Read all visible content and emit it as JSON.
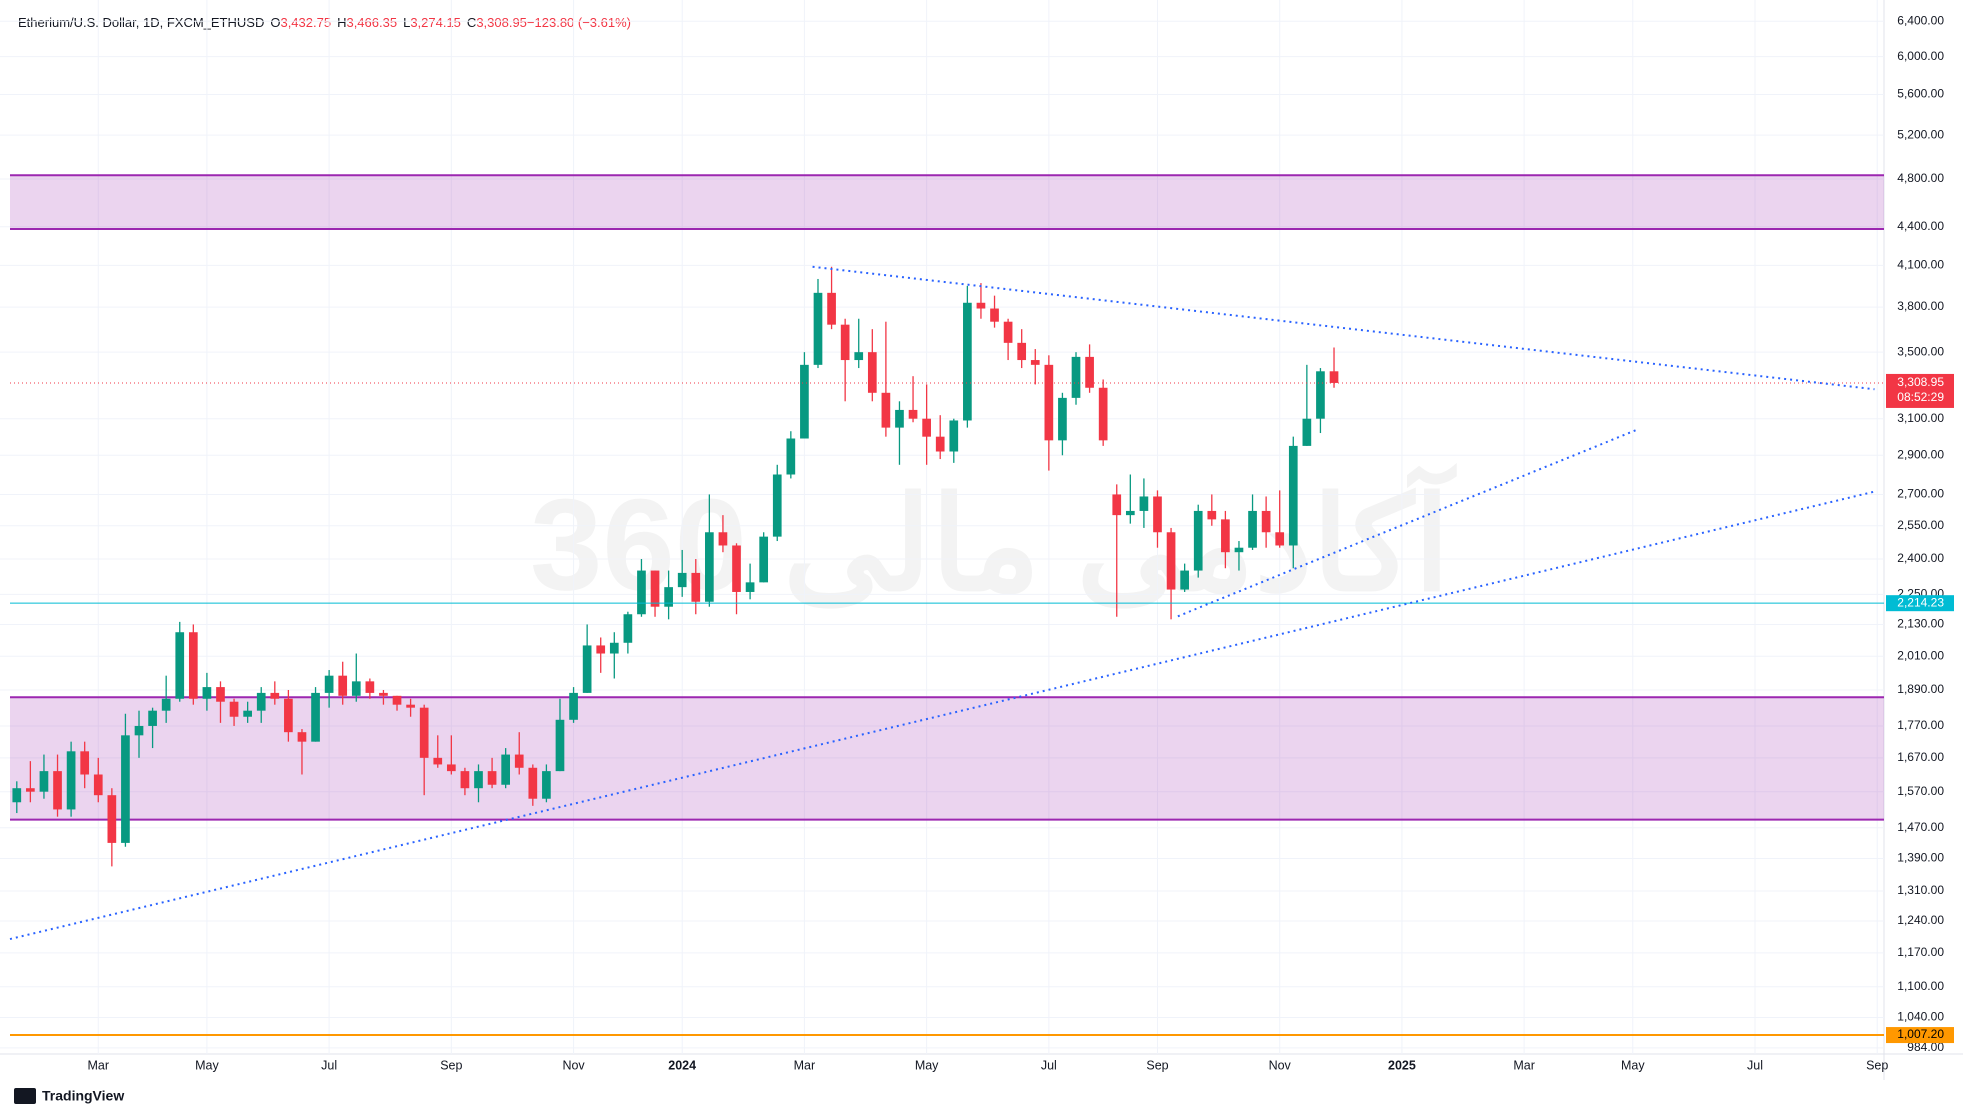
{
  "chart_data": {
    "type": "candlestick",
    "title": "Etherium/U.S. Dollar, 1D, FXCM_ETHUSD",
    "legend_values": [
      {
        "key": "O",
        "text": "3,432.75"
      },
      {
        "key": "H",
        "text": "3,466.35"
      },
      {
        "key": "L",
        "text": "3,274.15"
      },
      {
        "key": "C",
        "text": "3,308.95"
      },
      {
        "key": "",
        "text": "−123.80 (−3.61%)"
      }
    ],
    "watermark": "360 آکادمی مالی",
    "branding": "TradingView",
    "log_scale": true,
    "grid": true,
    "up_color": "#089981",
    "down_color": "#f23645",
    "ylim": [
      973,
      6533
    ],
    "yticks": [
      {
        "value": 6400,
        "label": "6,400.00"
      },
      {
        "value": 6000,
        "label": "6,000.00"
      },
      {
        "value": 5600,
        "label": "5,600.00"
      },
      {
        "value": 5200,
        "label": "5,200.00"
      },
      {
        "value": 4800,
        "label": "4,800.00"
      },
      {
        "value": 4400,
        "label": "4,400.00"
      },
      {
        "value": 4100,
        "label": "4,100.00"
      },
      {
        "value": 3800,
        "label": "3,800.00"
      },
      {
        "value": 3500,
        "label": "3,500.00"
      },
      {
        "value": 3100,
        "label": "3,100.00"
      },
      {
        "value": 2900,
        "label": "2,900.00"
      },
      {
        "value": 2700,
        "label": "2,700.00"
      },
      {
        "value": 2550,
        "label": "2,550.00"
      },
      {
        "value": 2400,
        "label": "2,400.00"
      },
      {
        "value": 2250,
        "label": "2,250.00"
      },
      {
        "value": 2130,
        "label": "2,130.00"
      },
      {
        "value": 2010,
        "label": "2,010.00"
      },
      {
        "value": 1890,
        "label": "1,890.00"
      },
      {
        "value": 1770,
        "label": "1,770.00"
      },
      {
        "value": 1670,
        "label": "1,670.00"
      },
      {
        "value": 1570,
        "label": "1,570.00"
      },
      {
        "value": 1470,
        "label": "1,470.00"
      },
      {
        "value": 1390,
        "label": "1,390.00"
      },
      {
        "value": 1310,
        "label": "1,310.00"
      },
      {
        "value": 1240,
        "label": "1,240.00"
      },
      {
        "value": 1170,
        "label": "1,170.00"
      },
      {
        "value": 1100,
        "label": "1,100.00"
      },
      {
        "value": 1040,
        "label": "1,040.00"
      },
      {
        "value": 984,
        "label": "984.00"
      }
    ],
    "categories": [
      null,
      null,
      null,
      null,
      null,
      null,
      "Mar",
      null,
      null,
      null,
      null,
      null,
      null,
      null,
      "May",
      null,
      null,
      null,
      null,
      null,
      null,
      null,
      null,
      "Jul",
      null,
      null,
      null,
      null,
      null,
      null,
      null,
      null,
      "Sep",
      null,
      null,
      null,
      null,
      null,
      null,
      null,
      null,
      "Nov",
      null,
      null,
      null,
      null,
      null,
      null,
      null,
      "2024",
      null,
      null,
      null,
      null,
      null,
      null,
      null,
      null,
      "Mar",
      null,
      null,
      null,
      null,
      null,
      null,
      null,
      null,
      "May",
      null,
      null,
      null,
      null,
      null,
      null,
      null,
      null,
      "Jul",
      null,
      null,
      null,
      null,
      null,
      null,
      null,
      "Sep",
      null,
      null,
      null,
      null,
      null,
      null,
      null,
      null,
      "Nov",
      null,
      null,
      null,
      null,
      null,
      null,
      null,
      null,
      "2025",
      null,
      null,
      null,
      null,
      null,
      null,
      null,
      null,
      "Mar",
      null,
      null,
      null,
      null,
      null,
      null,
      null,
      "May",
      null,
      null,
      null,
      null,
      null,
      null,
      null,
      null,
      "Jul",
      null,
      null,
      null,
      null,
      null,
      null,
      null,
      null,
      "Sep"
    ],
    "open": [
      1540,
      1580,
      1570,
      1630,
      1520,
      1690,
      1620,
      1560,
      1430,
      1740,
      1770,
      1820,
      1860,
      2100,
      1860,
      1900,
      1850,
      1800,
      1820,
      1880,
      1860,
      1750,
      1720,
      1880,
      1940,
      1870,
      1920,
      1880,
      1870,
      1840,
      1830,
      1670,
      1650,
      1630,
      1580,
      1630,
      1590,
      1680,
      1640,
      1550,
      1630,
      1790,
      1880,
      2050,
      2020,
      2060,
      2170,
      2350,
      2200,
      2280,
      2340,
      2220,
      2520,
      2460,
      2260,
      2300,
      2500,
      2800,
      2990,
      3420,
      3900,
      3680,
      3450,
      3500,
      3250,
      3050,
      3150,
      3100,
      3000,
      2920,
      3090,
      3830,
      3790,
      3700,
      3560,
      3450,
      3420,
      2980,
      3220,
      3470,
      3280,
      2700,
      2600,
      2620,
      2690,
      2520,
      2270,
      2350,
      2620,
      2580,
      2430,
      2450,
      2620,
      2520,
      2460,
      2950,
      3100,
      3380,
      null,
      null,
      null,
      null,
      null,
      null,
      null,
      null,
      null,
      null,
      null,
      null,
      null,
      null,
      null,
      null,
      null,
      null,
      null,
      null,
      null,
      null,
      null,
      null,
      null,
      null,
      null,
      null,
      null,
      null,
      null,
      null,
      null,
      null,
      null,
      null,
      null,
      null,
      null,
      null
    ],
    "high": [
      1600,
      1660,
      1680,
      1680,
      1720,
      1720,
      1670,
      1580,
      1810,
      1820,
      1830,
      1940,
      2140,
      2130,
      1950,
      1920,
      1860,
      1850,
      1900,
      1920,
      1890,
      1760,
      1900,
      1960,
      1990,
      2020,
      1930,
      1890,
      1870,
      1860,
      1840,
      1740,
      1740,
      1640,
      1650,
      1670,
      1700,
      1750,
      1650,
      1650,
      1860,
      1900,
      2130,
      2080,
      2100,
      2180,
      2400,
      2350,
      2350,
      2440,
      2400,
      2700,
      2600,
      2470,
      2380,
      2520,
      2850,
      3030,
      3500,
      4000,
      4090,
      3720,
      3720,
      3650,
      3700,
      3200,
      3350,
      3300,
      3120,
      3100,
      3950,
      3970,
      3880,
      3720,
      3650,
      3520,
      3480,
      3250,
      3500,
      3550,
      3330,
      2750,
      2800,
      2780,
      2720,
      2540,
      2380,
      2650,
      2700,
      2620,
      2480,
      2700,
      2690,
      2720,
      3000,
      3420,
      3400,
      3530,
      null,
      null,
      null,
      null,
      null,
      null,
      null,
      null,
      null,
      null,
      null,
      null,
      null,
      null,
      null,
      null,
      null,
      null,
      null,
      null,
      null,
      null,
      null,
      null,
      null,
      null,
      null,
      null,
      null,
      null,
      null,
      null,
      null,
      null,
      null,
      null,
      null,
      null,
      null,
      null
    ],
    "low": [
      1510,
      1540,
      1550,
      1500,
      1500,
      1580,
      1540,
      1370,
      1420,
      1670,
      1700,
      1780,
      1850,
      1840,
      1820,
      1780,
      1770,
      1780,
      1780,
      1840,
      1720,
      1620,
      1720,
      1830,
      1840,
      1850,
      1860,
      1840,
      1820,
      1800,
      1560,
      1640,
      1620,
      1560,
      1540,
      1580,
      1580,
      1620,
      1530,
      1540,
      1630,
      1780,
      1880,
      1950,
      1930,
      2020,
      2160,
      2160,
      2150,
      2240,
      2170,
      2200,
      2430,
      2170,
      2230,
      2300,
      2480,
      2780,
      2990,
      3400,
      3650,
      3200,
      3400,
      3200,
      3000,
      2850,
      3080,
      2850,
      2880,
      2860,
      3050,
      3720,
      3660,
      3450,
      3400,
      3300,
      2820,
      2900,
      3180,
      3250,
      2950,
      2160,
      2560,
      2540,
      2450,
      2150,
      2260,
      2320,
      2550,
      2360,
      2350,
      2440,
      2450,
      2450,
      2360,
      2950,
      3020,
      3280,
      null,
      null,
      null,
      null,
      null,
      null,
      null,
      null,
      null,
      null,
      null,
      null,
      null,
      null,
      null,
      null,
      null,
      null,
      null,
      null,
      null,
      null,
      null,
      null,
      null,
      null,
      null,
      null,
      null,
      null,
      null,
      null,
      null,
      null,
      null,
      null,
      null,
      null,
      null,
      null
    ],
    "close": [
      1580,
      1570,
      1630,
      1520,
      1690,
      1620,
      1560,
      1430,
      1740,
      1770,
      1820,
      1860,
      2100,
      1860,
      1900,
      1850,
      1800,
      1820,
      1880,
      1860,
      1750,
      1720,
      1880,
      1940,
      1870,
      1920,
      1880,
      1870,
      1840,
      1830,
      1670,
      1650,
      1630,
      1580,
      1630,
      1590,
      1680,
      1640,
      1550,
      1630,
      1790,
      1880,
      2050,
      2020,
      2060,
      2170,
      2350,
      2200,
      2280,
      2340,
      2220,
      2520,
      2460,
      2260,
      2300,
      2500,
      2800,
      2990,
      3420,
      3900,
      3680,
      3450,
      3500,
      3250,
      3050,
      3150,
      3100,
      3000,
      2920,
      3090,
      3830,
      3790,
      3700,
      3560,
      3450,
      3420,
      2980,
      3220,
      3470,
      3280,
      2980,
      2600,
      2620,
      2690,
      2520,
      2270,
      2350,
      2620,
      2580,
      2430,
      2450,
      2620,
      2520,
      2460,
      2950,
      3100,
      3380,
      3308.95,
      null,
      null,
      null,
      null,
      null,
      null,
      null,
      null,
      null,
      null,
      null,
      null,
      null,
      null,
      null,
      null,
      null,
      null,
      null,
      null,
      null,
      null,
      null,
      null,
      null,
      null,
      null,
      null,
      null,
      null,
      null,
      null,
      null,
      null,
      null,
      null,
      null,
      null,
      null,
      null
    ],
    "zones": [
      {
        "low": 4382,
        "high": 4833,
        "color": "#9c27b0"
      },
      {
        "low": 1492,
        "high": 1865,
        "color": "#9c27b0"
      }
    ],
    "levels": [
      {
        "value": 2214.23,
        "label": "2,214.23",
        "color": "#00bcd4"
      },
      {
        "value": 1007.2,
        "label": "1,007.20",
        "color": "#ff9800"
      }
    ],
    "last_price": {
      "value": 3308.95,
      "label": "3,308.95",
      "countdown": "08:52:29",
      "color": "#f23645"
    },
    "trendlines": [
      {
        "points": [
          [
            58.6,
            4090
          ],
          [
            136.8,
            3271
          ]
        ],
        "color": "#2962ff"
      },
      {
        "points": [
          [
            85.5,
            2162
          ],
          [
            119.4,
            3041
          ]
        ],
        "color": "#2962ff"
      },
      {
        "points": [
          [
            -0.5,
            1200
          ],
          [
            136.8,
            2714
          ]
        ],
        "color": "#2962ff"
      }
    ]
  }
}
